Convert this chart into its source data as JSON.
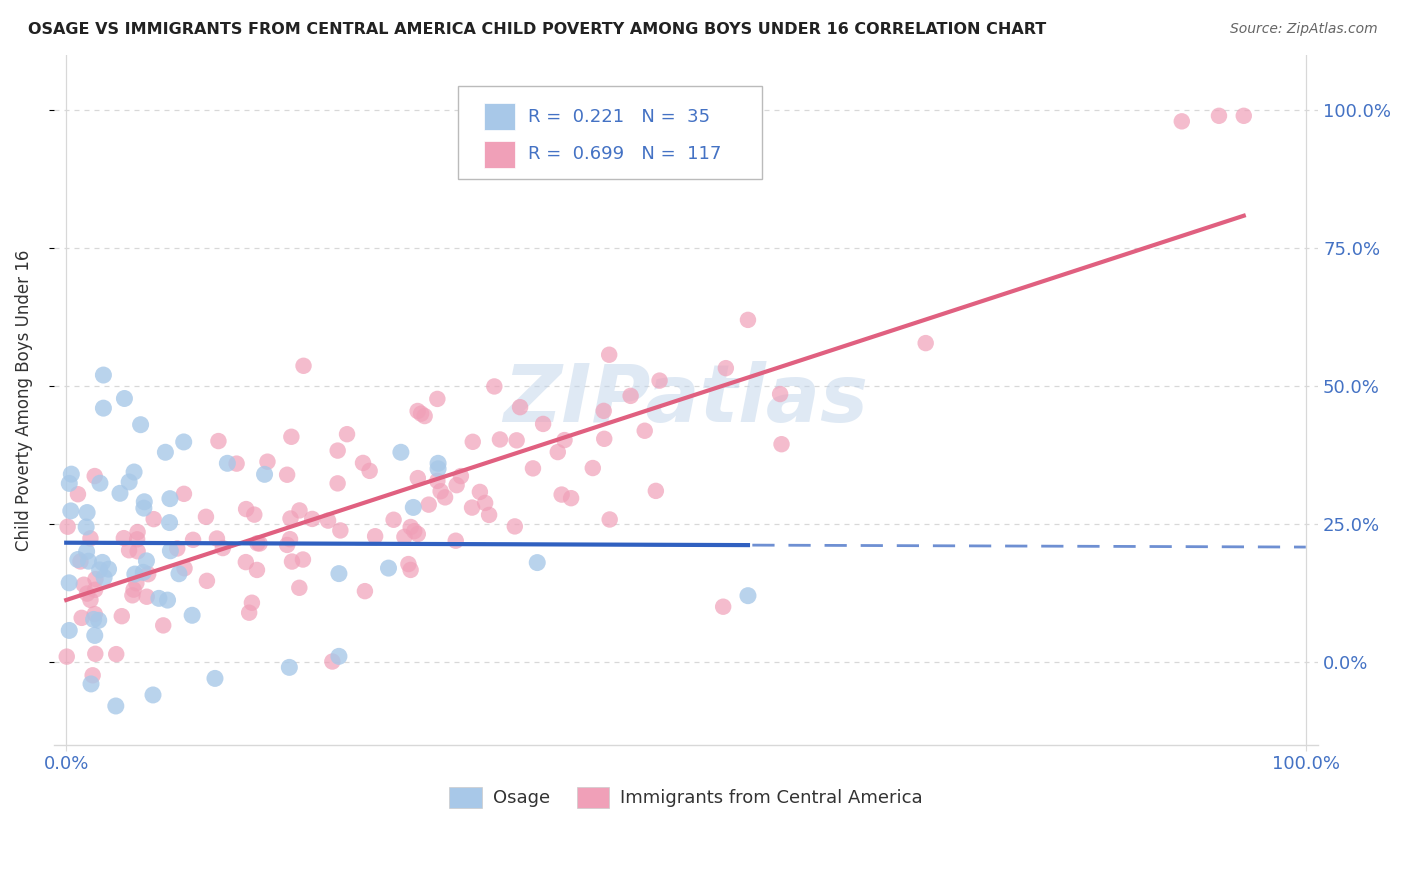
{
  "title": "OSAGE VS IMMIGRANTS FROM CENTRAL AMERICA CHILD POVERTY AMONG BOYS UNDER 16 CORRELATION CHART",
  "source": "Source: ZipAtlas.com",
  "ylabel": "Child Poverty Among Boys Under 16",
  "watermark": "ZIPatlas",
  "series1": {
    "name": "Osage",
    "R": 0.221,
    "N": 35,
    "color": "#a8c8e8",
    "line_color": "#3060c0",
    "line_style": "-"
  },
  "series2": {
    "name": "Immigrants from Central America",
    "R": 0.699,
    "N": 117,
    "color": "#f0a0b8",
    "line_color": "#e06080",
    "line_style": "-"
  },
  "xlim": [
    -0.01,
    1.01
  ],
  "ylim": [
    -0.15,
    1.1
  ],
  "yticks": [
    0.0,
    0.25,
    0.5,
    0.75,
    1.0
  ],
  "ytick_labels": [
    "0.0%",
    "25.0%",
    "50.0%",
    "75.0%",
    "100.0%"
  ],
  "xticks": [
    0.0,
    1.0
  ],
  "xtick_labels": [
    "0.0%",
    "100.0%"
  ],
  "background_color": "#ffffff",
  "grid_color": "#d8d8d8",
  "label_color": "#4472c4",
  "title_color": "#222222"
}
